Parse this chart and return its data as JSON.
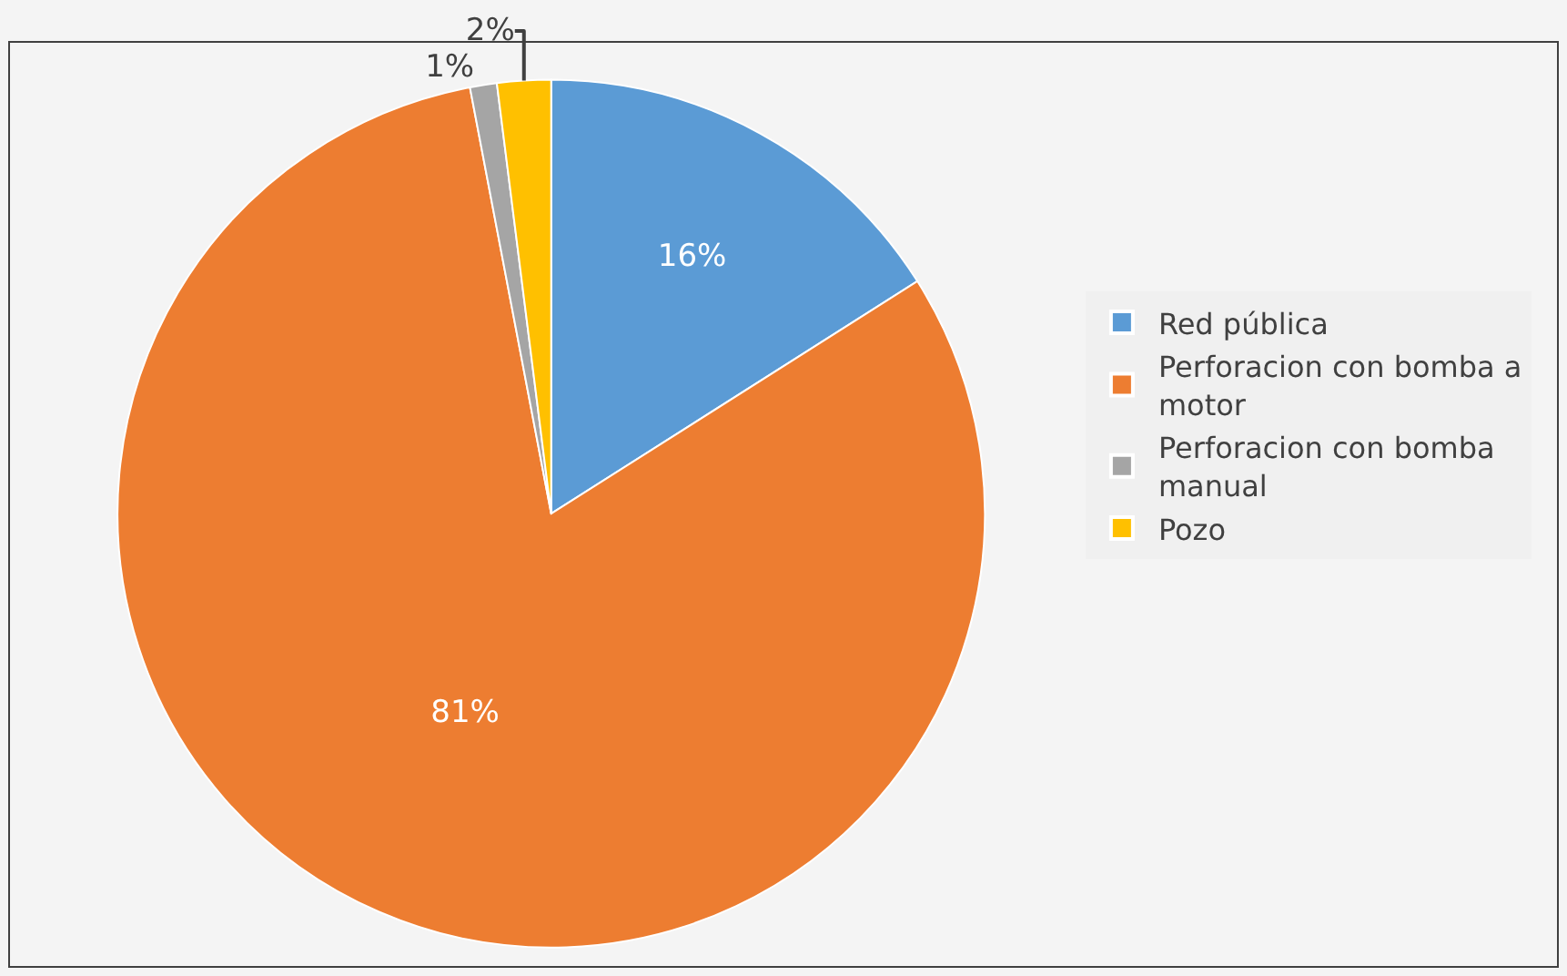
{
  "chart_data": {
    "type": "pie",
    "categories": [
      "Red pública",
      "Perforacion con bomba a motor",
      "Perforacion con bomba manual",
      "Pozo"
    ],
    "values": [
      16,
      81,
      1,
      2
    ],
    "colors": [
      "#5b9bd5",
      "#ed7d31",
      "#a5a5a5",
      "#ffc000"
    ],
    "value_labels": [
      "16%",
      "81%",
      "1%",
      "2%"
    ],
    "legend": "right"
  }
}
